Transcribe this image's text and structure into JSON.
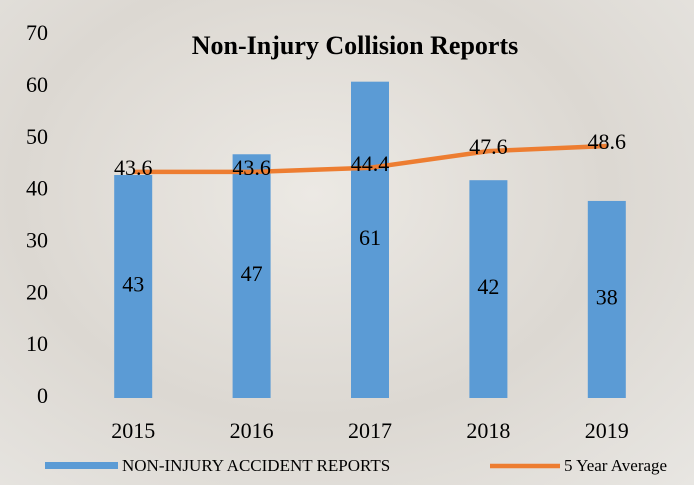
{
  "chart_data": {
    "type": "combo",
    "title": "Non-Injury Collision Reports",
    "categories": [
      "2015",
      "2016",
      "2017",
      "2018",
      "2019"
    ],
    "series": [
      {
        "name": "NON-INJURY ACCIDENT REPORTS",
        "type": "bar",
        "color": "#5b9bd5",
        "values": [
          43,
          47,
          61,
          42,
          38
        ]
      },
      {
        "name": "5 Year Average",
        "type": "line",
        "color": "#ed7d31",
        "values": [
          43.6,
          43.6,
          44.4,
          47.6,
          48.6
        ]
      }
    ],
    "ylim": [
      0,
      70
    ],
    "yticks": [
      0,
      10,
      20,
      30,
      40,
      50,
      60,
      70
    ],
    "grid": false,
    "legend": "bottom"
  }
}
